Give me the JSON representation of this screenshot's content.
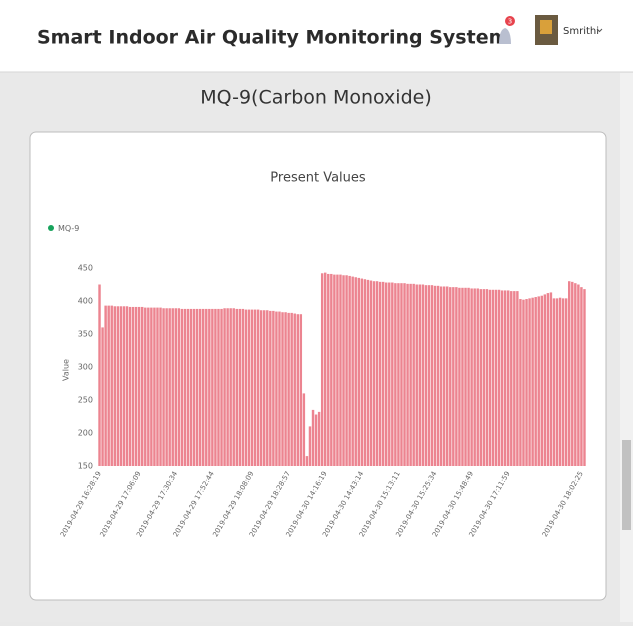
{
  "header": {
    "title": "Smart Indoor Air Quality Monitoring System",
    "notification_count": 3,
    "user": "Smrithi"
  },
  "page_title": "MQ-9(Carbon Monoxide)",
  "chart_data": {
    "type": "bar",
    "title": "Present Values",
    "ylabel": "Value",
    "legend_marker_color": "#17a35c",
    "ylim": [
      150,
      450
    ],
    "yticks": [
      150,
      200,
      250,
      300,
      350,
      400,
      450
    ],
    "grid": false,
    "categories": [
      "2019-04-29 16:28:19",
      null,
      null,
      null,
      null,
      null,
      null,
      null,
      null,
      null,
      null,
      null,
      null,
      "2019-04-29 17:06:09",
      null,
      null,
      null,
      null,
      null,
      null,
      null,
      null,
      null,
      null,
      null,
      "2019-04-29 17:30:34",
      null,
      null,
      null,
      null,
      null,
      null,
      null,
      null,
      null,
      null,
      null,
      "2019-04-29 17:52:44",
      null,
      null,
      null,
      null,
      null,
      null,
      null,
      null,
      null,
      null,
      null,
      null,
      "2019-04-29 18:08:09",
      null,
      null,
      null,
      null,
      null,
      null,
      null,
      null,
      null,
      null,
      null,
      "2019-04-29 18:28:57",
      null,
      null,
      null,
      null,
      null,
      null,
      null,
      null,
      null,
      null,
      null,
      "2019-04-30 14:16:19",
      null,
      null,
      null,
      null,
      null,
      null,
      null,
      null,
      null,
      null,
      null,
      "2019-04-30 14:43:14",
      null,
      null,
      null,
      null,
      null,
      null,
      null,
      null,
      null,
      null,
      null,
      "2019-04-30 15:13:11",
      null,
      null,
      null,
      null,
      null,
      null,
      null,
      null,
      null,
      null,
      null,
      "2019-04-30 15:25:34",
      null,
      null,
      null,
      null,
      null,
      null,
      null,
      null,
      null,
      null,
      null,
      "2019-04-30 15:48:49",
      null,
      null,
      null,
      null,
      null,
      null,
      null,
      null,
      null,
      null,
      null,
      "2019-04-30 17:11:59",
      null,
      null,
      null,
      null,
      null,
      null,
      null,
      null,
      null,
      null,
      null,
      null,
      null,
      null,
      null,
      null,
      null,
      null,
      null,
      null,
      null,
      null,
      null,
      "2019-04-30 18:02:25",
      null
    ],
    "series": [
      {
        "name": "MQ-9",
        "color": "#ec8490",
        "values": [
          425,
          360,
          393,
          393,
          393,
          392,
          392,
          392,
          392,
          392,
          391,
          391,
          391,
          391,
          391,
          390,
          390,
          390,
          390,
          390,
          390,
          389,
          389,
          389,
          389,
          389,
          389,
          388,
          388,
          388,
          388,
          388,
          388,
          388,
          388,
          388,
          388,
          388,
          388,
          388,
          388,
          389,
          389,
          389,
          389,
          388,
          388,
          388,
          387,
          387,
          387,
          387,
          387,
          386,
          386,
          386,
          385,
          385,
          384,
          384,
          383,
          383,
          382,
          382,
          381,
          380,
          380,
          260,
          165,
          210,
          235,
          228,
          232,
          442,
          443,
          441,
          441,
          440,
          440,
          440,
          439,
          439,
          438,
          437,
          436,
          435,
          434,
          433,
          432,
          431,
          430,
          430,
          429,
          429,
          428,
          428,
          428,
          427,
          427,
          427,
          427,
          426,
          426,
          426,
          425,
          425,
          425,
          424,
          424,
          424,
          423,
          423,
          422,
          422,
          422,
          421,
          421,
          421,
          420,
          420,
          420,
          420,
          419,
          419,
          419,
          418,
          418,
          418,
          417,
          417,
          417,
          417,
          416,
          416,
          416,
          415,
          415,
          415,
          403,
          402,
          403,
          404,
          405,
          406,
          407,
          408,
          410,
          412,
          413,
          404,
          404,
          405,
          404,
          404,
          430,
          429,
          427,
          425,
          421,
          418
        ]
      }
    ]
  }
}
